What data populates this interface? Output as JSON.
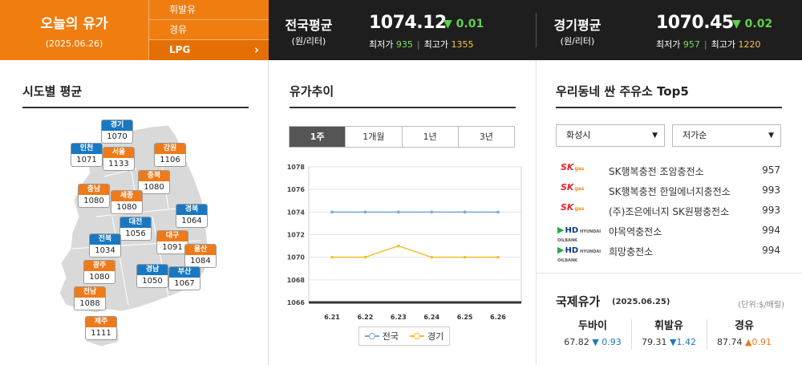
{
  "header": {
    "title": "오늘의 유가",
    "date": "(2025.06.26)",
    "fuel_menu": [
      "휘발유",
      "경유",
      "LPG"
    ],
    "national": {
      "name": "전국평균",
      "unit": "(원/리터)",
      "price": "1074.12",
      "change": "▼ 0.01",
      "min_label": "최저가",
      "min": "935",
      "max_label": "최고가",
      "max": "1355"
    },
    "gyeonggi": {
      "name": "경기평균",
      "unit": "(원/리터)",
      "price": "1070.45",
      "change": "▼ 0.02",
      "min_label": "최저가",
      "min": "957",
      "max_label": "최고가",
      "max": "1220"
    }
  },
  "regions": {
    "title": "시도별 평균",
    "items": [
      {
        "name": "경기",
        "value": "1070",
        "color": "blue"
      },
      {
        "name": "인천",
        "value": "1071",
        "color": "blue"
      },
      {
        "name": "서울",
        "value": "1133",
        "color": "orange"
      },
      {
        "name": "강원",
        "value": "1106",
        "color": "orange"
      },
      {
        "name": "충북",
        "value": "1080",
        "color": "orange"
      },
      {
        "name": "충남",
        "value": "1080",
        "color": "orange"
      },
      {
        "name": "세종",
        "value": "1080",
        "color": "orange"
      },
      {
        "name": "대전",
        "value": "1056",
        "color": "blue"
      },
      {
        "name": "경북",
        "value": "1064",
        "color": "blue"
      },
      {
        "name": "전북",
        "value": "1034",
        "color": "blue"
      },
      {
        "name": "대구",
        "value": "1091",
        "color": "orange"
      },
      {
        "name": "울산",
        "value": "1084",
        "color": "orange"
      },
      {
        "name": "광주",
        "value": "1080",
        "color": "orange"
      },
      {
        "name": "경남",
        "value": "1050",
        "color": "blue"
      },
      {
        "name": "부산",
        "value": "1067",
        "color": "blue"
      },
      {
        "name": "전남",
        "value": "1088",
        "color": "orange"
      },
      {
        "name": "제주",
        "value": "1111",
        "color": "orange"
      }
    ]
  },
  "trend": {
    "title": "유가추이",
    "tabs": [
      "1주",
      "1개월",
      "1년",
      "3년"
    ],
    "active_tab": "1주",
    "legend": [
      "전국",
      "경기"
    ]
  },
  "chart_data": {
    "type": "line",
    "x": [
      "6.21",
      "6.22",
      "6.23",
      "6.24",
      "6.25",
      "6.26"
    ],
    "series": [
      {
        "name": "전국",
        "values": [
          1074,
          1074,
          1074,
          1074,
          1074,
          1074
        ],
        "color": "#7ba6d6"
      },
      {
        "name": "경기",
        "values": [
          1070,
          1070,
          1071,
          1070,
          1070,
          1070
        ],
        "color": "#f0c030"
      }
    ],
    "ylim": [
      1066,
      1078
    ],
    "yticks": [
      1066,
      1068,
      1070,
      1072,
      1074,
      1076,
      1078
    ],
    "grid": true
  },
  "top5": {
    "title": "우리동네 싼 주유소 Top5",
    "region_select": "화성시",
    "sort_select": "저가순",
    "stations": [
      {
        "brand": "sk",
        "name": "SK행복충전 조암충전소",
        "price": "957"
      },
      {
        "brand": "sk",
        "name": "SK행복충전 한일에너지충전소",
        "price": "993"
      },
      {
        "brand": "sk",
        "name": "(주)조은에너지 SK원평충전소",
        "price": "993"
      },
      {
        "brand": "hd",
        "name": "야목역충전소",
        "price": "994"
      },
      {
        "brand": "hd",
        "name": "희망충전소",
        "price": "994"
      }
    ],
    "logos": {
      "sk_text": "SK",
      "sk_sub": "gas",
      "hd_text": "HD",
      "hd_sub": "HYUNDAI OILBANK"
    }
  },
  "intl": {
    "title": "국제유가",
    "date": "(2025.06.25)",
    "unit": "(단위:$/배럴)",
    "items": [
      {
        "name": "두바이",
        "price": "67.82",
        "change": "▼ 0.93",
        "dir": "down"
      },
      {
        "name": "휘발유",
        "price": "79.31",
        "change": "▼1.42",
        "dir": "down"
      },
      {
        "name": "경유",
        "price": "87.74",
        "change": "▲0.91",
        "dir": "up"
      }
    ]
  }
}
